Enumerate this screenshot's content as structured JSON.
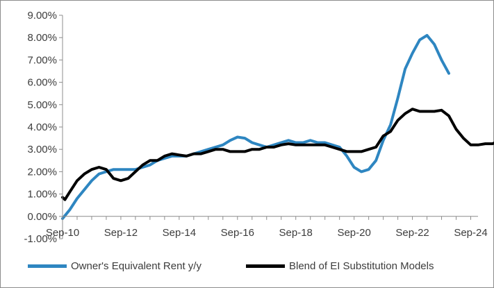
{
  "chart_data": {
    "type": "line",
    "title": "",
    "xlabel": "",
    "ylabel": "",
    "ylim": [
      -0.01,
      0.09
    ],
    "y_ticks": [
      -0.01,
      0,
      0.01,
      0.02,
      0.03,
      0.04,
      0.05,
      0.06,
      0.07,
      0.08,
      0.09
    ],
    "y_tick_labels": [
      "-1.00%",
      "0.00%",
      "1.00%",
      "2.00%",
      "3.00%",
      "4.00%",
      "5.00%",
      "6.00%",
      "7.00%",
      "8.00%",
      "9.00%"
    ],
    "xlim": [
      "2010-09",
      "2024-12"
    ],
    "x_ticks": [
      "2010-09",
      "2012-09",
      "2014-09",
      "2016-09",
      "2018-09",
      "2020-09",
      "2022-09",
      "2024-09"
    ],
    "x_tick_labels": [
      "Sep-10",
      "Sep-12",
      "Sep-14",
      "Sep-16",
      "Sep-18",
      "Sep-20",
      "Sep-22",
      "Sep-24"
    ],
    "grid": false,
    "legend_position": "bottom",
    "series": [
      {
        "name": "Owner's Equivalent Rent y/y",
        "color": "#2e86c1",
        "points": [
          [
            "2010-09",
            -0.001
          ],
          [
            "2010-12",
            0.003
          ],
          [
            "2011-03",
            0.008
          ],
          [
            "2011-06",
            0.012
          ],
          [
            "2011-09",
            0.016
          ],
          [
            "2011-12",
            0.019
          ],
          [
            "2012-03",
            0.02
          ],
          [
            "2012-06",
            0.021
          ],
          [
            "2012-09",
            0.021
          ],
          [
            "2012-12",
            0.021
          ],
          [
            "2013-03",
            0.021
          ],
          [
            "2013-06",
            0.022
          ],
          [
            "2013-09",
            0.023
          ],
          [
            "2013-12",
            0.025
          ],
          [
            "2014-03",
            0.026
          ],
          [
            "2014-06",
            0.027
          ],
          [
            "2014-09",
            0.027
          ],
          [
            "2014-12",
            0.027
          ],
          [
            "2015-03",
            0.028
          ],
          [
            "2015-06",
            0.029
          ],
          [
            "2015-09",
            0.03
          ],
          [
            "2015-12",
            0.031
          ],
          [
            "2016-03",
            0.032
          ],
          [
            "2016-06",
            0.034
          ],
          [
            "2016-09",
            0.0355
          ],
          [
            "2016-12",
            0.035
          ],
          [
            "2017-03",
            0.033
          ],
          [
            "2017-06",
            0.032
          ],
          [
            "2017-09",
            0.031
          ],
          [
            "2017-12",
            0.032
          ],
          [
            "2018-03",
            0.033
          ],
          [
            "2018-06",
            0.034
          ],
          [
            "2018-09",
            0.033
          ],
          [
            "2018-12",
            0.033
          ],
          [
            "2019-03",
            0.034
          ],
          [
            "2019-06",
            0.033
          ],
          [
            "2019-09",
            0.033
          ],
          [
            "2019-12",
            0.032
          ],
          [
            "2020-03",
            0.031
          ],
          [
            "2020-06",
            0.027
          ],
          [
            "2020-09",
            0.022
          ],
          [
            "2020-12",
            0.02
          ],
          [
            "2021-03",
            0.021
          ],
          [
            "2021-06",
            0.025
          ],
          [
            "2021-09",
            0.034
          ],
          [
            "2021-12",
            0.041
          ],
          [
            "2022-03",
            0.053
          ],
          [
            "2022-06",
            0.066
          ],
          [
            "2022-09",
            0.073
          ],
          [
            "2022-12",
            0.079
          ],
          [
            "2023-03",
            0.081
          ],
          [
            "2023-06",
            0.077
          ],
          [
            "2023-09",
            0.07
          ],
          [
            "2023-12",
            0.064
          ]
        ]
      },
      {
        "name": "Blend of EI Substitution Models",
        "color": "#000000",
        "points": [
          [
            "2010-09",
            0.0085
          ],
          [
            "2010-10",
            0.0075
          ],
          [
            "2010-12",
            0.011
          ],
          [
            "2011-03",
            0.016
          ],
          [
            "2011-06",
            0.019
          ],
          [
            "2011-09",
            0.021
          ],
          [
            "2011-12",
            0.022
          ],
          [
            "2012-03",
            0.021
          ],
          [
            "2012-06",
            0.017
          ],
          [
            "2012-09",
            0.016
          ],
          [
            "2012-12",
            0.017
          ],
          [
            "2013-03",
            0.02
          ],
          [
            "2013-06",
            0.023
          ],
          [
            "2013-09",
            0.025
          ],
          [
            "2013-12",
            0.025
          ],
          [
            "2014-03",
            0.027
          ],
          [
            "2014-06",
            0.028
          ],
          [
            "2014-09",
            0.0275
          ],
          [
            "2014-12",
            0.027
          ],
          [
            "2015-03",
            0.028
          ],
          [
            "2015-06",
            0.028
          ],
          [
            "2015-09",
            0.029
          ],
          [
            "2015-12",
            0.03
          ],
          [
            "2016-03",
            0.03
          ],
          [
            "2016-06",
            0.029
          ],
          [
            "2016-09",
            0.029
          ],
          [
            "2016-12",
            0.029
          ],
          [
            "2017-03",
            0.03
          ],
          [
            "2017-06",
            0.03
          ],
          [
            "2017-09",
            0.031
          ],
          [
            "2017-12",
            0.031
          ],
          [
            "2018-03",
            0.032
          ],
          [
            "2018-06",
            0.0325
          ],
          [
            "2018-09",
            0.032
          ],
          [
            "2018-12",
            0.032
          ],
          [
            "2019-03",
            0.032
          ],
          [
            "2019-06",
            0.032
          ],
          [
            "2019-09",
            0.032
          ],
          [
            "2019-12",
            0.031
          ],
          [
            "2020-03",
            0.03
          ],
          [
            "2020-06",
            0.029
          ],
          [
            "2020-09",
            0.029
          ],
          [
            "2020-12",
            0.029
          ],
          [
            "2021-03",
            0.03
          ],
          [
            "2021-06",
            0.031
          ],
          [
            "2021-09",
            0.036
          ],
          [
            "2021-12",
            0.038
          ],
          [
            "2022-03",
            0.043
          ],
          [
            "2022-06",
            0.046
          ],
          [
            "2022-09",
            0.048
          ],
          [
            "2022-12",
            0.047
          ],
          [
            "2023-03",
            0.047
          ],
          [
            "2023-06",
            0.047
          ],
          [
            "2023-09",
            0.0475
          ],
          [
            "2023-12",
            0.045
          ],
          [
            "2024-03",
            0.039
          ],
          [
            "2024-06",
            0.035
          ],
          [
            "2024-09",
            0.032
          ],
          [
            "2024-12",
            0.032
          ],
          [
            "2025-03",
            0.0325
          ],
          [
            "2025-06",
            0.0325
          ],
          [
            "2025-09",
            0.034
          ]
        ]
      }
    ]
  }
}
